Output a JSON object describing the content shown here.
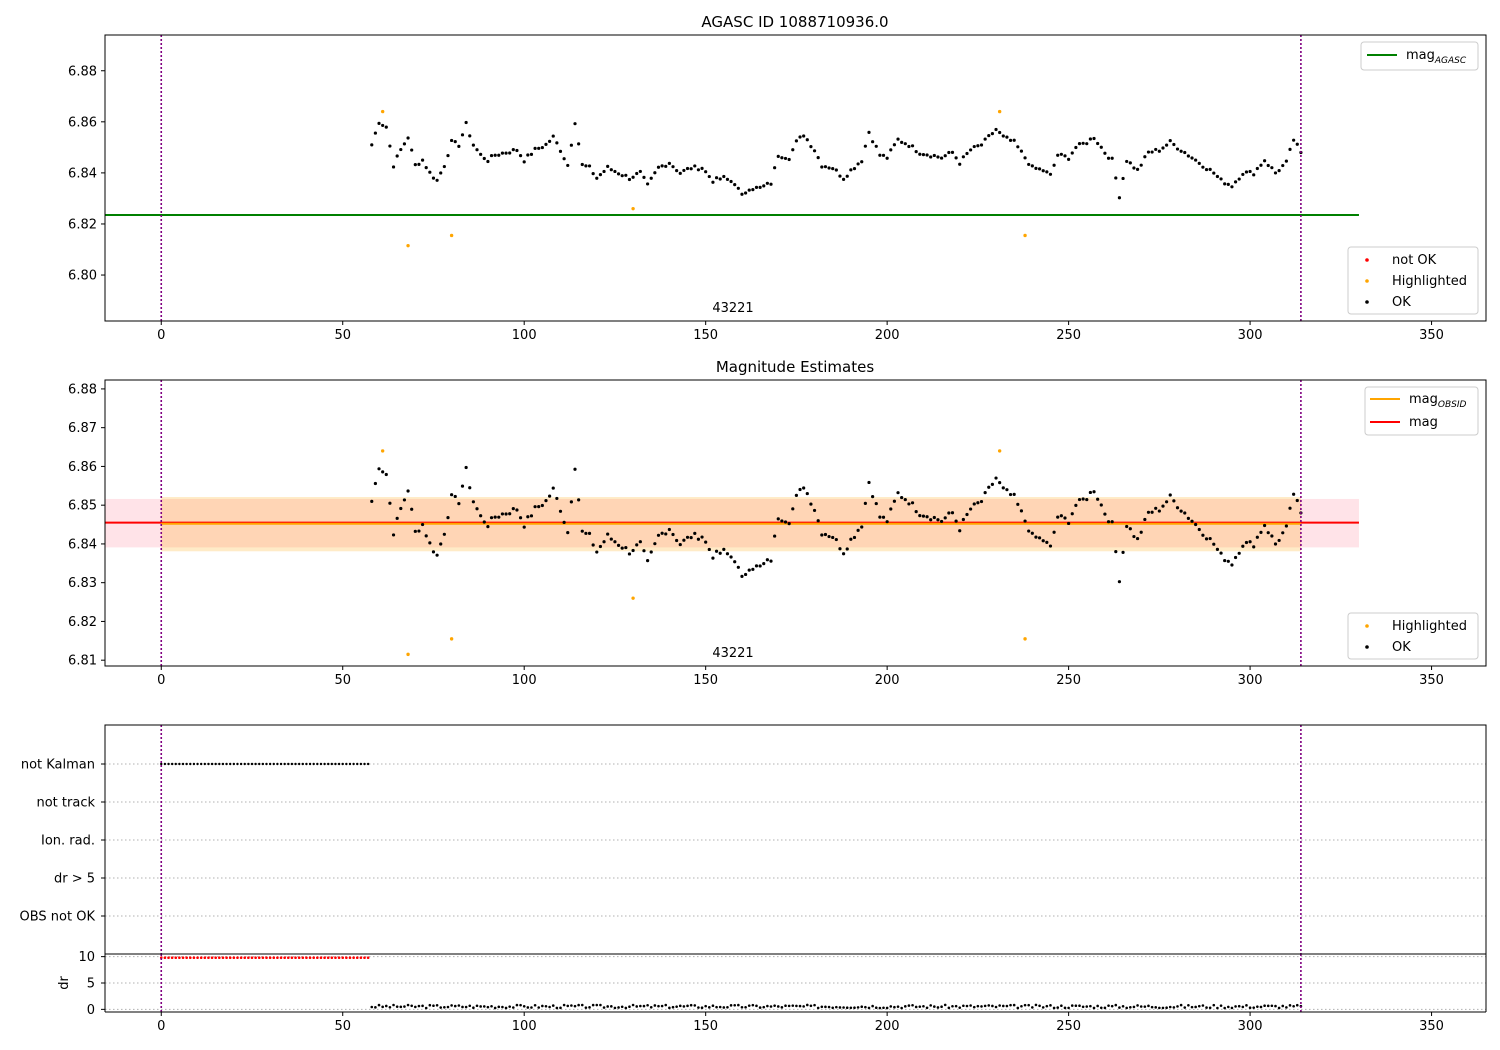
{
  "chart_data": [
    {
      "type": "scatter",
      "title": "AGASC ID 1088710936.0",
      "annotation": "43221",
      "xlim": [
        -15.5,
        365
      ],
      "ylim": [
        6.782,
        6.894
      ],
      "xticks": [
        0,
        50,
        100,
        150,
        200,
        250,
        300,
        350
      ],
      "yticks": [
        6.8,
        6.82,
        6.84,
        6.86,
        6.88
      ],
      "ytick_labels": [
        "6.80",
        "6.82",
        "6.84",
        "6.86",
        "6.88"
      ],
      "vlines": [
        0,
        314
      ],
      "hlines": [
        {
          "name": "mag",
          "subscript": "AGASC",
          "y": 6.8235,
          "x": [
            -15.5,
            330
          ],
          "color": "#008000"
        }
      ],
      "legend_top": [
        {
          "label": "mag",
          "subscript": "AGASC",
          "color": "#008000"
        }
      ],
      "legend_bottom": [
        {
          "label": "not OK",
          "color": "#ff0000"
        },
        {
          "label": "Highlighted",
          "color": "#ffa500"
        },
        {
          "label": "OK",
          "color": "#000000"
        }
      ],
      "highlighted": [
        [
          61,
          6.864
        ],
        [
          68,
          6.8115
        ],
        [
          80,
          6.8155
        ],
        [
          130,
          6.826
        ],
        [
          231,
          6.864
        ],
        [
          238,
          6.8155
        ]
      ],
      "ok_anchors": [
        [
          58,
          6.851
        ],
        [
          60,
          6.86
        ],
        [
          62,
          6.858
        ],
        [
          64,
          6.843
        ],
        [
          66,
          6.849
        ],
        [
          68,
          6.854
        ],
        [
          70,
          6.843
        ],
        [
          72,
          6.845
        ],
        [
          74,
          6.84
        ],
        [
          76,
          6.837
        ],
        [
          78,
          6.843
        ],
        [
          80,
          6.852
        ],
        [
          82,
          6.851
        ],
        [
          84,
          6.859
        ],
        [
          86,
          6.851
        ],
        [
          88,
          6.847
        ],
        [
          90,
          6.845
        ],
        [
          92,
          6.847
        ],
        [
          95,
          6.848
        ],
        [
          98,
          6.849
        ],
        [
          100,
          6.845
        ],
        [
          103,
          6.849
        ],
        [
          106,
          6.851
        ],
        [
          108,
          6.854
        ],
        [
          110,
          6.849
        ],
        [
          112,
          6.843
        ],
        [
          114,
          6.86
        ],
        [
          116,
          6.843
        ],
        [
          118,
          6.842
        ],
        [
          120,
          6.838
        ],
        [
          123,
          6.842
        ],
        [
          126,
          6.84
        ],
        [
          129,
          6.838
        ],
        [
          132,
          6.84
        ],
        [
          134,
          6.835
        ],
        [
          137,
          6.842
        ],
        [
          140,
          6.844
        ],
        [
          143,
          6.84
        ],
        [
          146,
          6.842
        ],
        [
          149,
          6.842
        ],
        [
          152,
          6.837
        ],
        [
          155,
          6.838
        ],
        [
          158,
          6.836
        ],
        [
          160,
          6.831
        ],
        [
          162,
          6.834
        ],
        [
          165,
          6.834
        ],
        [
          168,
          6.836
        ],
        [
          170,
          6.847
        ],
        [
          173,
          6.846
        ],
        [
          175,
          6.852
        ],
        [
          177,
          6.855
        ],
        [
          180,
          6.849
        ],
        [
          182,
          6.843
        ],
        [
          185,
          6.842
        ],
        [
          188,
          6.838
        ],
        [
          190,
          6.841
        ],
        [
          193,
          6.845
        ],
        [
          195,
          6.856
        ],
        [
          198,
          6.847
        ],
        [
          200,
          6.846
        ],
        [
          203,
          6.853
        ],
        [
          206,
          6.851
        ],
        [
          209,
          6.848
        ],
        [
          212,
          6.847
        ],
        [
          215,
          6.846
        ],
        [
          218,
          6.848
        ],
        [
          220,
          6.844
        ],
        [
          223,
          6.849
        ],
        [
          226,
          6.851
        ],
        [
          228,
          6.854
        ],
        [
          230,
          6.857
        ],
        [
          232,
          6.854
        ],
        [
          235,
          6.852
        ],
        [
          238,
          6.846
        ],
        [
          240,
          6.842
        ],
        [
          243,
          6.841
        ],
        [
          245,
          6.839
        ],
        [
          247,
          6.847
        ],
        [
          250,
          6.846
        ],
        [
          252,
          6.85
        ],
        [
          255,
          6.852
        ],
        [
          257,
          6.854
        ],
        [
          260,
          6.848
        ],
        [
          262,
          6.845
        ],
        [
          264,
          6.831
        ],
        [
          266,
          6.845
        ],
        [
          269,
          6.841
        ],
        [
          272,
          6.848
        ],
        [
          275,
          6.849
        ],
        [
          278,
          6.852
        ],
        [
          281,
          6.849
        ],
        [
          284,
          6.846
        ],
        [
          287,
          6.843
        ],
        [
          290,
          6.84
        ],
        [
          292,
          6.837
        ],
        [
          295,
          6.835
        ],
        [
          298,
          6.84
        ],
        [
          301,
          6.84
        ],
        [
          304,
          6.845
        ],
        [
          307,
          6.84
        ],
        [
          310,
          6.844
        ],
        [
          312,
          6.853
        ],
        [
          314,
          6.848
        ]
      ]
    },
    {
      "type": "scatter",
      "title": "Magnitude Estimates",
      "annotation": "43221",
      "xlim": [
        -15.5,
        365
      ],
      "ylim": [
        6.8085,
        6.8823
      ],
      "xticks": [
        0,
        50,
        100,
        150,
        200,
        250,
        300,
        350
      ],
      "yticks": [
        6.81,
        6.82,
        6.83,
        6.84,
        6.85,
        6.86,
        6.87,
        6.88
      ],
      "ytick_labels": [
        "6.81",
        "6.82",
        "6.83",
        "6.84",
        "6.85",
        "6.86",
        "6.87",
        "6.88"
      ],
      "vlines": [
        0,
        314
      ],
      "bands": [
        {
          "name": "mag",
          "x": [
            -15.5,
            330
          ],
          "y": [
            6.8391,
            6.8516
          ],
          "color": "#ffc0cb",
          "opacity": 0.45
        },
        {
          "name": "mag_OBSID",
          "x": [
            0,
            314
          ],
          "y": [
            6.8381,
            6.8521
          ],
          "color": "#ffa500",
          "opacity": 0.22
        }
      ],
      "hlines": [
        {
          "name": "mag",
          "y": 6.8455,
          "x": [
            -15.5,
            330
          ],
          "color": "#ff0000"
        },
        {
          "name": "mag_OBSID",
          "y": 6.8452,
          "x": [
            0,
            314
          ],
          "color": "#ffa500"
        }
      ],
      "legend_top": [
        {
          "label": "mag",
          "subscript": "OBSID",
          "color": "#ffa500"
        },
        {
          "label": "mag",
          "subscript": "",
          "color": "#ff0000"
        }
      ],
      "legend_bottom": [
        {
          "label": "Highlighted",
          "color": "#ffa500"
        },
        {
          "label": "OK",
          "color": "#000000"
        }
      ],
      "highlighted": [
        [
          61,
          6.864
        ],
        [
          68,
          6.8115
        ],
        [
          80,
          6.8155
        ],
        [
          130,
          6.826
        ],
        [
          231,
          6.864
        ],
        [
          238,
          6.8155
        ]
      ],
      "ok_points": "same_as_panel_1"
    },
    {
      "type": "scatter",
      "title": "",
      "xlim": [
        -15.5,
        365
      ],
      "categories": [
        "OBS not OK",
        "dr > 5",
        "Ion. rad.",
        "not track",
        "not Kalman"
      ],
      "flag_points": [
        {
          "category": "not Kalman",
          "x": [
            0,
            57
          ]
        }
      ],
      "vlines": [
        0,
        314
      ]
    },
    {
      "type": "scatter",
      "title": "",
      "xlim": [
        -15.5,
        365
      ],
      "ylim": [
        -0.5,
        10.5
      ],
      "ylabel": "dr",
      "yticks": [
        0,
        5,
        10
      ],
      "ytick_labels": [
        "0",
        "5",
        "10"
      ],
      "series": [
        {
          "name": "red",
          "color": "#ff0000",
          "x": [
            0,
            57
          ],
          "y": 9.8
        },
        {
          "name": "black",
          "color": "#000000",
          "x": [
            58,
            314
          ],
          "y": 0.55
        }
      ],
      "vlines": [
        0,
        314
      ]
    }
  ]
}
